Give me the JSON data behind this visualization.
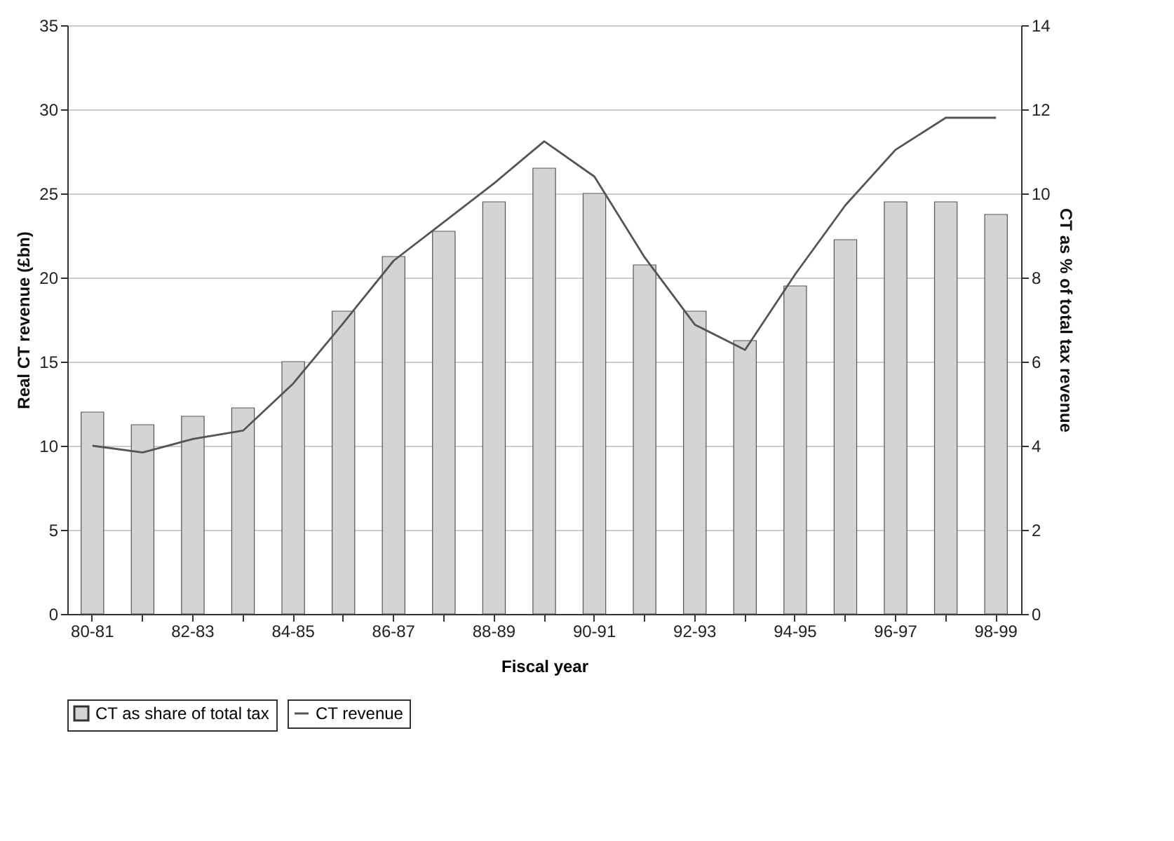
{
  "chart_data": {
    "type": "bar",
    "xlabel": "Fiscal year",
    "ylabel": "Real CT revenue (£bn)",
    "y2label": "CT as % of  total tax revenue",
    "categories": [
      "80-81",
      null,
      "82-83",
      null,
      "84-85",
      null,
      "86-87",
      null,
      "88-89",
      null,
      "90-91",
      null,
      "92-93",
      null,
      "94-95",
      null,
      "96-97",
      null,
      "98-99"
    ],
    "series": [
      {
        "name": "CT as share of total tax",
        "axis": "y2",
        "color": "#d4d4d4",
        "values": [
          4.8,
          4.5,
          4.7,
          4.9,
          6.0,
          7.2,
          8.5,
          9.1,
          9.8,
          10.6,
          10.0,
          8.3,
          7.2,
          6.5,
          7.8,
          8.9,
          9.8,
          9.8,
          9.5
        ]
      },
      {
        "name": "CT revenue",
        "type": "line",
        "color": "#555555",
        "values": [
          10.0,
          9.6,
          10.4,
          10.9,
          13.7,
          17.3,
          21.0,
          23.3,
          25.6,
          28.1,
          26.0,
          21.2,
          17.2,
          15.7,
          20.2,
          24.3,
          27.6,
          29.5,
          29.5
        ]
      }
    ],
    "ylim": [
      0,
      35
    ],
    "yticks": [
      0,
      5,
      10,
      15,
      20,
      25,
      30,
      35
    ],
    "y2lim": [
      0,
      14
    ],
    "y2ticks": [
      0,
      2,
      4,
      6,
      8,
      10,
      12,
      14
    ],
    "grid": "y",
    "legend": "bottom"
  }
}
